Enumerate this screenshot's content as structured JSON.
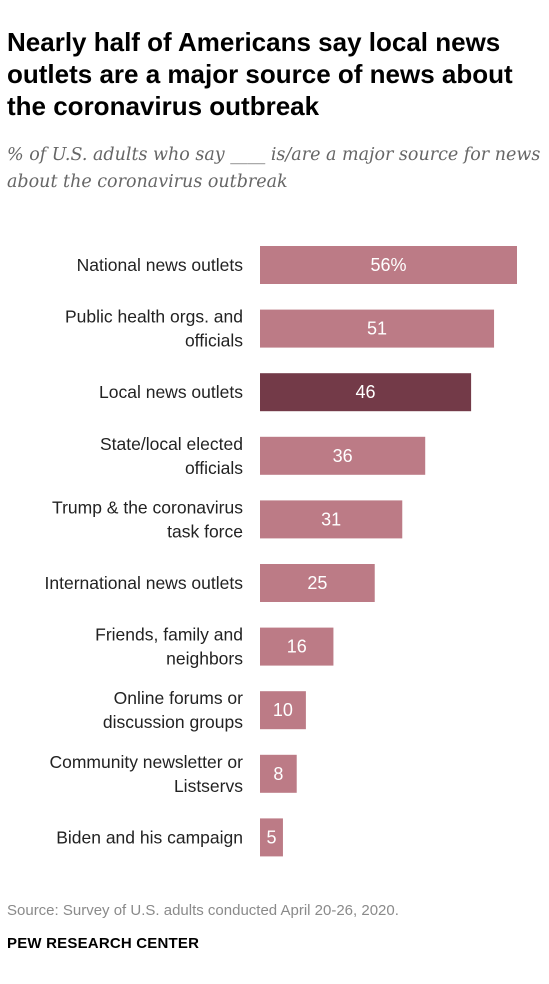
{
  "chart_data": {
    "type": "bar",
    "orientation": "horizontal",
    "title": "Nearly half of Americans say local news outlets are a major source of news about the coronavirus outbreak",
    "subtitle": "% of U.S. adults who say ____ is/are a major source for news about the coronavirus outbreak",
    "categories": [
      [
        "National news outlets"
      ],
      [
        "Public health orgs. and",
        "officials"
      ],
      [
        "Local news outlets"
      ],
      [
        "State/local elected",
        "officials"
      ],
      [
        "Trump & the coronavirus",
        "task force"
      ],
      [
        "International news outlets"
      ],
      [
        "Friends, family and",
        "neighbors"
      ],
      [
        "Online forums or",
        "discussion groups"
      ],
      [
        "Community newsletter or",
        "Listservs"
      ],
      [
        "Biden and his campaign"
      ]
    ],
    "values": [
      56,
      51,
      46,
      36,
      31,
      25,
      16,
      10,
      8,
      5
    ],
    "value_labels": [
      "56%",
      "51",
      "46",
      "36",
      "31",
      "25",
      "16",
      "10",
      "8",
      "5"
    ],
    "highlight_index": 2,
    "xlim": [
      0,
      56
    ],
    "grid": false,
    "legend": "none",
    "colors": {
      "bar": "#bc7b86",
      "highlight": "#733a48",
      "value_text": "#ffffff"
    }
  },
  "source": "Source: Survey of U.S. adults conducted April 20-26, 2020.",
  "brand": "PEW RESEARCH CENTER"
}
